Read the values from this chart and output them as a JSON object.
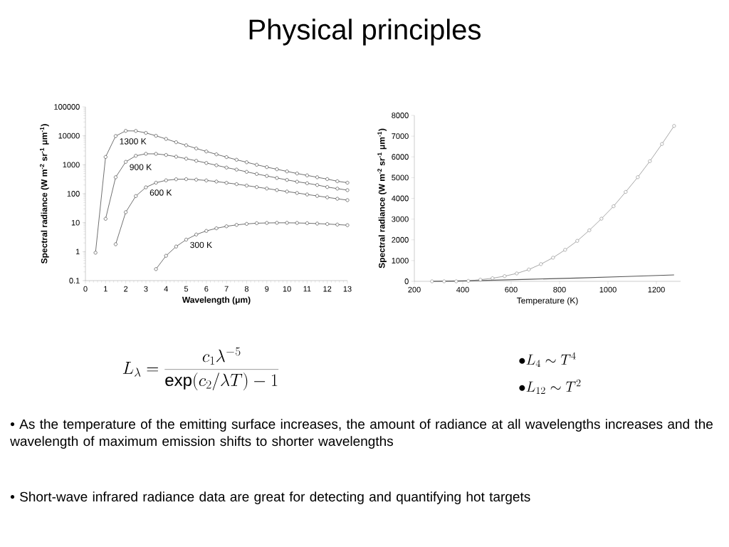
{
  "chart_data": [
    {
      "type": "line",
      "title": "Physical principles",
      "xlabel": "Wavelength (μm)",
      "ylabel": "Spectral radiance (W m$^{-2}$ sr$^{-1}$ μm$^{-1}$)",
      "log": "y",
      "marker": "circle",
      "xlim": [
        0,
        13
      ],
      "ylim": [
        0.1,
        100000
      ],
      "xticks": [
        0,
        1,
        2,
        3,
        4,
        5,
        6,
        7,
        8,
        9,
        10,
        11,
        12,
        13
      ],
      "yticks": [
        0.1,
        1,
        10,
        100,
        1000,
        10000,
        100000
      ],
      "series": [
        {
          "name": "1300 K",
          "color": "#333333",
          "x": [
            0.5,
            1,
            1.5,
            2,
            2.5,
            3,
            3.5,
            4,
            4.5,
            5,
            5.5,
            6,
            6.5,
            7,
            7.5,
            8,
            8.5,
            9,
            9.5,
            10,
            10.5,
            11,
            11.5,
            12,
            12.5,
            13
          ],
          "values": [
            0.92,
            1860,
            9800,
            14800,
            14700,
            12600,
            10000,
            7800,
            6000,
            4700,
            3650,
            2880,
            2290,
            1840,
            1490,
            1220,
            1000,
            830,
            700,
            590,
            500,
            430,
            370,
            320,
            270,
            240
          ]
        },
        {
          "name": "900 K",
          "color": "#333333",
          "x": [
            1,
            1.5,
            2,
            2.5,
            3,
            3.5,
            4,
            4.5,
            5,
            5.5,
            6,
            6.5,
            7,
            7.5,
            8,
            8.5,
            9,
            9.5,
            10,
            10.5,
            11,
            11.5,
            12,
            12.5,
            13
          ],
          "values": [
            13.6,
            370,
            1260,
            2040,
            2390,
            2380,
            2180,
            1900,
            1620,
            1370,
            1150,
            960,
            800,
            680,
            570,
            480,
            410,
            350,
            300,
            260,
            230,
            200,
            170,
            150,
            133
          ]
        },
        {
          "name": "600 K",
          "color": "#333333",
          "x": [
            1.5,
            2,
            2.5,
            3,
            3.5,
            4,
            4.5,
            5,
            5.5,
            6,
            6.5,
            7,
            7.5,
            8,
            8.5,
            9,
            9.5,
            10,
            10.5,
            11,
            11.5,
            12,
            12.5,
            13
          ],
          "values": [
            1.8,
            23,
            83,
            166,
            240,
            290,
            315,
            318,
            306,
            287,
            263,
            238,
            214,
            191,
            170,
            151,
            134,
            119,
            106,
            94,
            84,
            75,
            67,
            60
          ]
        },
        {
          "name": "300 K",
          "color": "#333333",
          "x": [
            3.5,
            4,
            4.5,
            5,
            5.5,
            6,
            6.5,
            7,
            7.5,
            8,
            8.5,
            9,
            9.5,
            10,
            10.5,
            11,
            11.5,
            12,
            12.5,
            13
          ],
          "values": [
            0.25,
            0.72,
            1.5,
            2.6,
            3.9,
            5.2,
            6.4,
            7.5,
            8.4,
            9.1,
            9.6,
            9.8,
            9.9,
            9.9,
            9.8,
            9.6,
            9.3,
            9.0,
            8.6,
            8.2
          ]
        }
      ],
      "annotations": [
        "L_{\\lambda} = \\frac{c_{1}\\lambda^{-5}}{\\exp(c_{2}/\\lambda T)-1}",
        "• As the temperature of the emitting surface increases, the amount of radiance at all wavelengths increases and the wavelength of maximum emission shifts to shorter wavelengths",
        "• Short-wave infrared radiance data are great for detecting and quantifying hot targets"
      ]
    },
    {
      "type": "line",
      "xlabel": "Temperature (K)",
      "ylabel": "Spectral radiance (W m$^{-2}$ sr$^{-1}$ μm$^{-1}$)",
      "marker": "circle",
      "xlim": [
        200,
        1300
      ],
      "ylim": [
        0,
        8000
      ],
      "xticks": [
        200,
        400,
        600,
        800,
        1000,
        1200
      ],
      "yticks": [
        0,
        1000,
        2000,
        3000,
        4000,
        5000,
        6000,
        7000,
        8000
      ],
      "series": [
        {
          "color": "#808080",
          "x": [
            273,
            323,
            373,
            423,
            473,
            523,
            573,
            623,
            673,
            723,
            773,
            823,
            873,
            923,
            973,
            1023,
            1073,
            1123,
            1173,
            1223,
            1273
          ],
          "values": [
            0,
            0,
            0,
            20,
            80,
            150,
            250,
            380,
            570,
            830,
            1140,
            1520,
            1950,
            2460,
            3020,
            3620,
            4310,
            5020,
            5790,
            6620,
            7490
          ]
        },
        {
          "color": "#555555",
          "marker": "none",
          "x": [
            273,
            473,
            673,
            873,
            1073,
            1273
          ],
          "values": [
            0,
            40,
            100,
            160,
            230,
            310
          ]
        }
      ],
      "annotations": [
        "\\bullet L_{4} \\sim T^{4}",
        "\\bullet L_{12} \\sim T^{2}"
      ]
    }
  ]
}
